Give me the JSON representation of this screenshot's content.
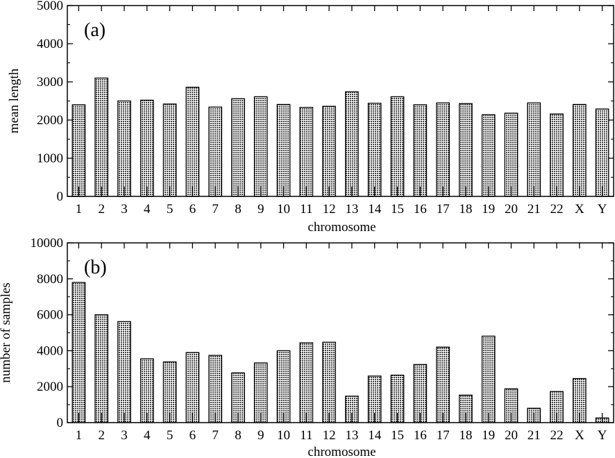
{
  "chart_data": [
    {
      "type": "bar",
      "panel_label": "(a)",
      "categories": [
        "1",
        "2",
        "3",
        "4",
        "5",
        "6",
        "7",
        "8",
        "9",
        "10",
        "11",
        "12",
        "13",
        "14",
        "15",
        "16",
        "17",
        "18",
        "19",
        "20",
        "21",
        "22",
        "X",
        "Y"
      ],
      "values": [
        2400,
        3100,
        2500,
        2520,
        2420,
        2860,
        2340,
        2560,
        2610,
        2410,
        2330,
        2360,
        2740,
        2440,
        2610,
        2400,
        2450,
        2430,
        2140,
        2180,
        2450,
        2160,
        2410,
        2290
      ],
      "xlabel": "chromosome",
      "ylabel": "mean length",
      "ylim": [
        0,
        5000
      ],
      "yticks": [
        "0",
        "1000",
        "2000",
        "3000",
        "4000",
        "5000"
      ],
      "grid": false,
      "bar_fill": "#8c8c8c"
    },
    {
      "type": "bar",
      "panel_label": "(b)",
      "categories": [
        "1",
        "2",
        "3",
        "4",
        "5",
        "6",
        "7",
        "8",
        "9",
        "10",
        "11",
        "12",
        "13",
        "14",
        "15",
        "16",
        "17",
        "18",
        "19",
        "20",
        "21",
        "22",
        "X",
        "Y"
      ],
      "values": [
        7800,
        6000,
        5620,
        3550,
        3380,
        3900,
        3740,
        2770,
        3320,
        4000,
        4440,
        4470,
        1470,
        2590,
        2640,
        3230,
        4200,
        1530,
        4810,
        1880,
        800,
        1730,
        2450,
        260
      ],
      "xlabel": "chromosome",
      "ylabel": "number of samples",
      "ylim": [
        0,
        10000
      ],
      "yticks": [
        "0",
        "2000",
        "4000",
        "6000",
        "8000",
        "10000"
      ],
      "grid": false,
      "bar_fill": "#8c8c8c"
    }
  ]
}
